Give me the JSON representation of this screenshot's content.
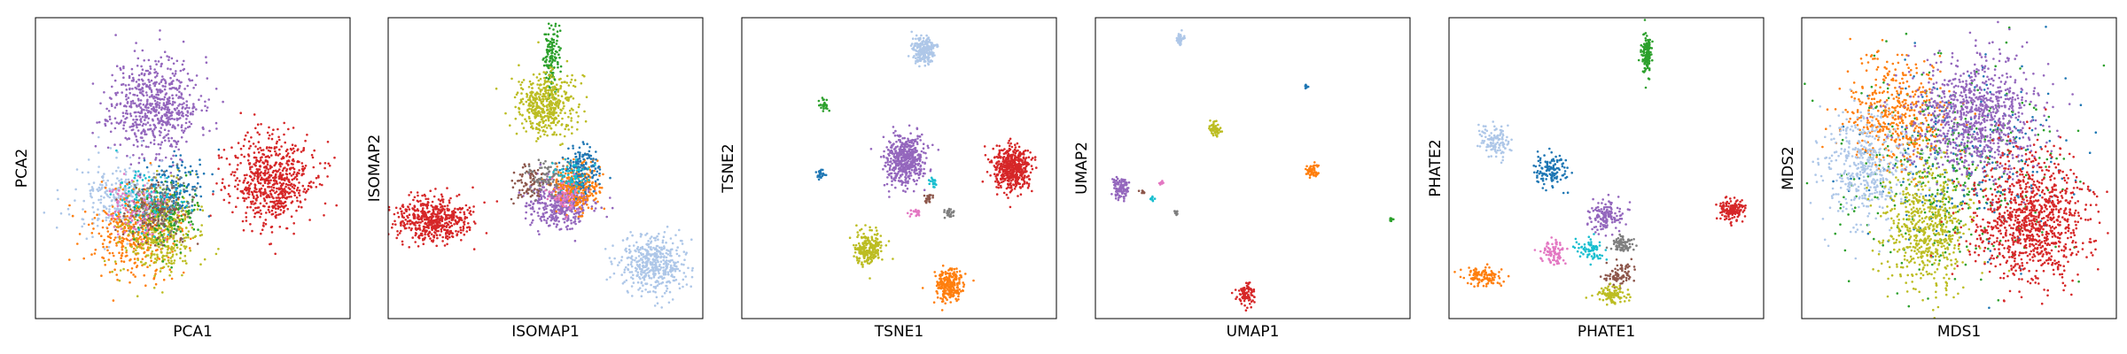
{
  "chart_data": [
    {
      "type": "scatter",
      "xlabel": "PCA1",
      "ylabel": "PCA2",
      "grid": false,
      "legend": "none",
      "xlim": [
        0,
        100
      ],
      "ylim": [
        0,
        100
      ],
      "series": [
        {
          "color": "#9467bd",
          "points": [
            {
              "x": 38,
              "y": 71,
              "sx": 7,
              "sy": 8,
              "n": 650
            }
          ]
        },
        {
          "color": "#d62728",
          "points": [
            {
              "x": 75,
              "y": 46,
              "sx": 6.5,
              "sy": 7,
              "n": 650
            }
          ]
        },
        {
          "color": "#aec7e8",
          "points": [
            {
              "x": 27,
              "y": 40,
              "sx": 7,
              "sy": 6,
              "n": 300
            }
          ]
        },
        {
          "color": "#ff7f0e",
          "points": [
            {
              "x": 32,
              "y": 28,
              "sx": 7,
              "sy": 7,
              "n": 380
            }
          ]
        },
        {
          "color": "#bcbd22",
          "points": [
            {
              "x": 40,
              "y": 28,
              "sx": 6,
              "sy": 7,
              "n": 380
            }
          ]
        },
        {
          "color": "#2ca02c",
          "points": [
            {
              "x": 42,
              "y": 34,
              "sx": 5,
              "sy": 6,
              "n": 140
            }
          ]
        },
        {
          "color": "#1f77b4",
          "points": [
            {
              "x": 44,
              "y": 44,
              "sx": 5,
              "sy": 5,
              "n": 140
            }
          ]
        },
        {
          "color": "#17becf",
          "points": [
            {
              "x": 36,
              "y": 40,
              "sx": 5,
              "sy": 5,
              "n": 110
            }
          ]
        },
        {
          "color": "#7f7f7f",
          "points": [
            {
              "x": 40,
              "y": 38,
              "sx": 5,
              "sy": 5,
              "n": 110
            }
          ]
        },
        {
          "color": "#8c564b",
          "points": [
            {
              "x": 38,
              "y": 34,
              "sx": 5,
              "sy": 5,
              "n": 110
            }
          ]
        },
        {
          "color": "#e377c2",
          "points": [
            {
              "x": 32,
              "y": 36,
              "sx": 5,
              "sy": 5,
              "n": 90
            }
          ]
        }
      ]
    },
    {
      "type": "scatter",
      "xlabel": "ISOMAP1",
      "ylabel": "ISOMAP2",
      "grid": false,
      "legend": "none",
      "xlim": [
        0,
        100
      ],
      "ylim": [
        0,
        100
      ],
      "series": [
        {
          "color": "#2ca02c",
          "points": [
            {
              "x": 52,
              "y": 86,
              "sx": 1.3,
              "sy": 6,
              "n": 140
            }
          ]
        },
        {
          "color": "#bcbd22",
          "points": [
            {
              "x": 50,
              "y": 71,
              "sx": 4.5,
              "sy": 5,
              "n": 450
            }
          ]
        },
        {
          "color": "#d62728",
          "points": [
            {
              "x": 14,
              "y": 33,
              "sx": 6,
              "sy": 3.5,
              "n": 550
            }
          ]
        },
        {
          "color": "#9467bd",
          "points": [
            {
              "x": 55,
              "y": 38,
              "sx": 5,
              "sy": 4,
              "n": 400
            }
          ]
        },
        {
          "color": "#ff7f0e",
          "points": [
            {
              "x": 60,
              "y": 44,
              "sx": 3.5,
              "sy": 4,
              "n": 300
            }
          ]
        },
        {
          "color": "#1f77b4",
          "points": [
            {
              "x": 62,
              "y": 50,
              "sx": 3,
              "sy": 4,
              "n": 150
            }
          ]
        },
        {
          "color": "#8c564b",
          "points": [
            {
              "x": 46,
              "y": 45,
              "sx": 3,
              "sy": 3,
              "n": 90
            }
          ]
        },
        {
          "color": "#7f7f7f",
          "points": [
            {
              "x": 50,
              "y": 47,
              "sx": 3,
              "sy": 3,
              "n": 80
            }
          ]
        },
        {
          "color": "#17becf",
          "points": [
            {
              "x": 58,
              "y": 47,
              "sx": 3,
              "sy": 3,
              "n": 60
            }
          ]
        },
        {
          "color": "#e377c2",
          "points": [
            {
              "x": 56,
              "y": 40,
              "sx": 3,
              "sy": 3,
              "n": 60
            }
          ]
        },
        {
          "color": "#aec7e8",
          "points": [
            {
              "x": 84,
              "y": 18,
              "sx": 5,
              "sy": 5,
              "n": 450
            }
          ]
        }
      ]
    },
    {
      "type": "scatter",
      "xlabel": "TSNE1",
      "ylabel": "TSNE2",
      "grid": false,
      "legend": "none",
      "xlim": [
        0,
        100
      ],
      "ylim": [
        0,
        100
      ],
      "series": [
        {
          "color": "#aec7e8",
          "points": [
            {
              "x": 58,
              "y": 89,
              "sx": 1.8,
              "sy": 2.2,
              "n": 220
            }
          ]
        },
        {
          "color": "#2ca02c",
          "points": [
            {
              "x": 26,
              "y": 71,
              "sx": 0.7,
              "sy": 0.9,
              "n": 25
            }
          ]
        },
        {
          "color": "#1f77b4",
          "points": [
            {
              "x": 25,
              "y": 48,
              "sx": 0.7,
              "sy": 0.9,
              "n": 25
            }
          ]
        },
        {
          "color": "#9467bd",
          "points": [
            {
              "x": 52,
              "y": 53,
              "sx": 3,
              "sy": 4,
              "n": 500
            }
          ]
        },
        {
          "color": "#d62728",
          "points": [
            {
              "x": 86,
              "y": 50,
              "sx": 2.8,
              "sy": 3.6,
              "n": 500
            }
          ]
        },
        {
          "color": "#17becf",
          "points": [
            {
              "x": 61,
              "y": 45,
              "sx": 0.7,
              "sy": 0.8,
              "n": 20
            }
          ]
        },
        {
          "color": "#8c564b",
          "points": [
            {
              "x": 59,
              "y": 40,
              "sx": 0.8,
              "sy": 0.8,
              "n": 25
            }
          ]
        },
        {
          "color": "#e377c2",
          "points": [
            {
              "x": 55,
              "y": 35,
              "sx": 0.7,
              "sy": 0.7,
              "n": 20
            }
          ]
        },
        {
          "color": "#7f7f7f",
          "points": [
            {
              "x": 66,
              "y": 35,
              "sx": 0.8,
              "sy": 0.9,
              "n": 25
            }
          ]
        },
        {
          "color": "#bcbd22",
          "points": [
            {
              "x": 40,
              "y": 23,
              "sx": 2.2,
              "sy": 2.8,
              "n": 250
            }
          ]
        },
        {
          "color": "#ff7f0e",
          "points": [
            {
              "x": 66,
              "y": 11,
              "sx": 2.1,
              "sy": 2.6,
              "n": 250
            }
          ]
        }
      ]
    },
    {
      "type": "scatter",
      "xlabel": "UMAP1",
      "ylabel": "UMAP2",
      "grid": false,
      "legend": "none",
      "xlim": [
        0,
        100
      ],
      "ylim": [
        0,
        100
      ],
      "series": [
        {
          "color": "#aec7e8",
          "points": [
            {
              "x": 27,
              "y": 93,
              "sx": 0.6,
              "sy": 1.1,
              "n": 40
            }
          ]
        },
        {
          "color": "#1f77b4",
          "points": [
            {
              "x": 67,
              "y": 77,
              "sx": 0.3,
              "sy": 0.4,
              "n": 12
            }
          ]
        },
        {
          "color": "#bcbd22",
          "points": [
            {
              "x": 38,
              "y": 63,
              "sx": 0.9,
              "sy": 1.1,
              "n": 60
            }
          ]
        },
        {
          "color": "#ff7f0e",
          "points": [
            {
              "x": 69,
              "y": 49,
              "sx": 0.9,
              "sy": 1.1,
              "n": 60
            }
          ]
        },
        {
          "color": "#9467bd",
          "points": [
            {
              "x": 8,
              "y": 43,
              "sx": 1.4,
              "sy": 1.6,
              "n": 110
            }
          ]
        },
        {
          "color": "#e377c2",
          "points": [
            {
              "x": 21,
              "y": 45,
              "sx": 0.4,
              "sy": 0.4,
              "n": 10
            }
          ]
        },
        {
          "color": "#17becf",
          "points": [
            {
              "x": 18,
              "y": 40,
              "sx": 0.4,
              "sy": 0.4,
              "n": 10
            }
          ]
        },
        {
          "color": "#8c564b",
          "points": [
            {
              "x": 15,
              "y": 42,
              "sx": 0.4,
              "sy": 0.4,
              "n": 10
            }
          ]
        },
        {
          "color": "#7f7f7f",
          "points": [
            {
              "x": 26,
              "y": 35,
              "sx": 0.4,
              "sy": 0.4,
              "n": 10
            }
          ]
        },
        {
          "color": "#2ca02c",
          "points": [
            {
              "x": 94,
              "y": 33,
              "sx": 0.3,
              "sy": 0.4,
              "n": 10
            }
          ]
        },
        {
          "color": "#d62728",
          "points": [
            {
              "x": 48,
              "y": 8,
              "sx": 1.4,
              "sy": 2,
              "n": 90
            }
          ]
        }
      ]
    },
    {
      "type": "scatter",
      "xlabel": "PHATE1",
      "ylabel": "PHATE2",
      "grid": false,
      "legend": "none",
      "xlim": [
        0,
        100
      ],
      "ylim": [
        0,
        100
      ],
      "series": [
        {
          "color": "#2ca02c",
          "points": [
            {
              "x": 63,
              "y": 88,
              "sx": 0.8,
              "sy": 3.5,
              "n": 120
            }
          ]
        },
        {
          "color": "#aec7e8",
          "points": [
            {
              "x": 15,
              "y": 59,
              "sx": 2.5,
              "sy": 2.5,
              "n": 120
            }
          ]
        },
        {
          "color": "#1f77b4",
          "points": [
            {
              "x": 32,
              "y": 49,
              "sx": 2.5,
              "sy": 2.8,
              "n": 130
            }
          ]
        },
        {
          "color": "#9467bd",
          "points": [
            {
              "x": 50,
              "y": 34,
              "sx": 2.5,
              "sy": 2.5,
              "n": 150
            }
          ]
        },
        {
          "color": "#d62728",
          "points": [
            {
              "x": 90,
              "y": 36,
              "sx": 2,
              "sy": 1.8,
              "n": 150
            }
          ]
        },
        {
          "color": "#17becf",
          "points": [
            {
              "x": 45,
              "y": 23,
              "sx": 2.5,
              "sy": 2,
              "n": 70
            }
          ]
        },
        {
          "color": "#7f7f7f",
          "points": [
            {
              "x": 55,
              "y": 25,
              "sx": 2,
              "sy": 1.5,
              "n": 80
            }
          ]
        },
        {
          "color": "#e377c2",
          "points": [
            {
              "x": 33,
              "y": 22,
              "sx": 2,
              "sy": 2,
              "n": 80
            }
          ]
        },
        {
          "color": "#8c564b",
          "points": [
            {
              "x": 54,
              "y": 15,
              "sx": 2.5,
              "sy": 2,
              "n": 80
            }
          ]
        },
        {
          "color": "#bcbd22",
          "points": [
            {
              "x": 52,
              "y": 8,
              "sx": 2.5,
              "sy": 1.5,
              "n": 100
            }
          ]
        },
        {
          "color": "#ff7f0e",
          "points": [
            {
              "x": 11,
              "y": 14,
              "sx": 2.8,
              "sy": 1.5,
              "n": 120
            }
          ]
        }
      ]
    },
    {
      "type": "scatter",
      "xlabel": "MDS1",
      "ylabel": "MDS2",
      "grid": false,
      "legend": "none",
      "xlim": [
        0,
        100
      ],
      "ylim": [
        0,
        100
      ],
      "series": [
        {
          "color": "#2ca02c",
          "points": [
            {
              "x": 48,
              "y": 50,
              "sx": 17,
              "sy": 17,
              "n": 400
            }
          ]
        },
        {
          "color": "#1f77b4",
          "points": [
            {
              "x": 52,
              "y": 54,
              "sx": 16,
              "sy": 16,
              "n": 250
            }
          ]
        },
        {
          "color": "#ff7f0e",
          "points": [
            {
              "x": 30,
              "y": 68,
              "sx": 8,
              "sy": 9,
              "n": 450
            }
          ]
        },
        {
          "color": "#aec7e8",
          "points": [
            {
              "x": 20,
              "y": 50,
              "sx": 7,
              "sy": 9,
              "n": 450
            }
          ]
        },
        {
          "color": "#9467bd",
          "points": [
            {
              "x": 55,
              "y": 67,
              "sx": 10,
              "sy": 10,
              "n": 900
            }
          ]
        },
        {
          "color": "#bcbd22",
          "points": [
            {
              "x": 40,
              "y": 30,
              "sx": 7,
              "sy": 10,
              "n": 600
            }
          ]
        },
        {
          "color": "#d62728",
          "points": [
            {
              "x": 73,
              "y": 33,
              "sx": 9,
              "sy": 11,
              "n": 1000
            }
          ]
        }
      ]
    }
  ]
}
